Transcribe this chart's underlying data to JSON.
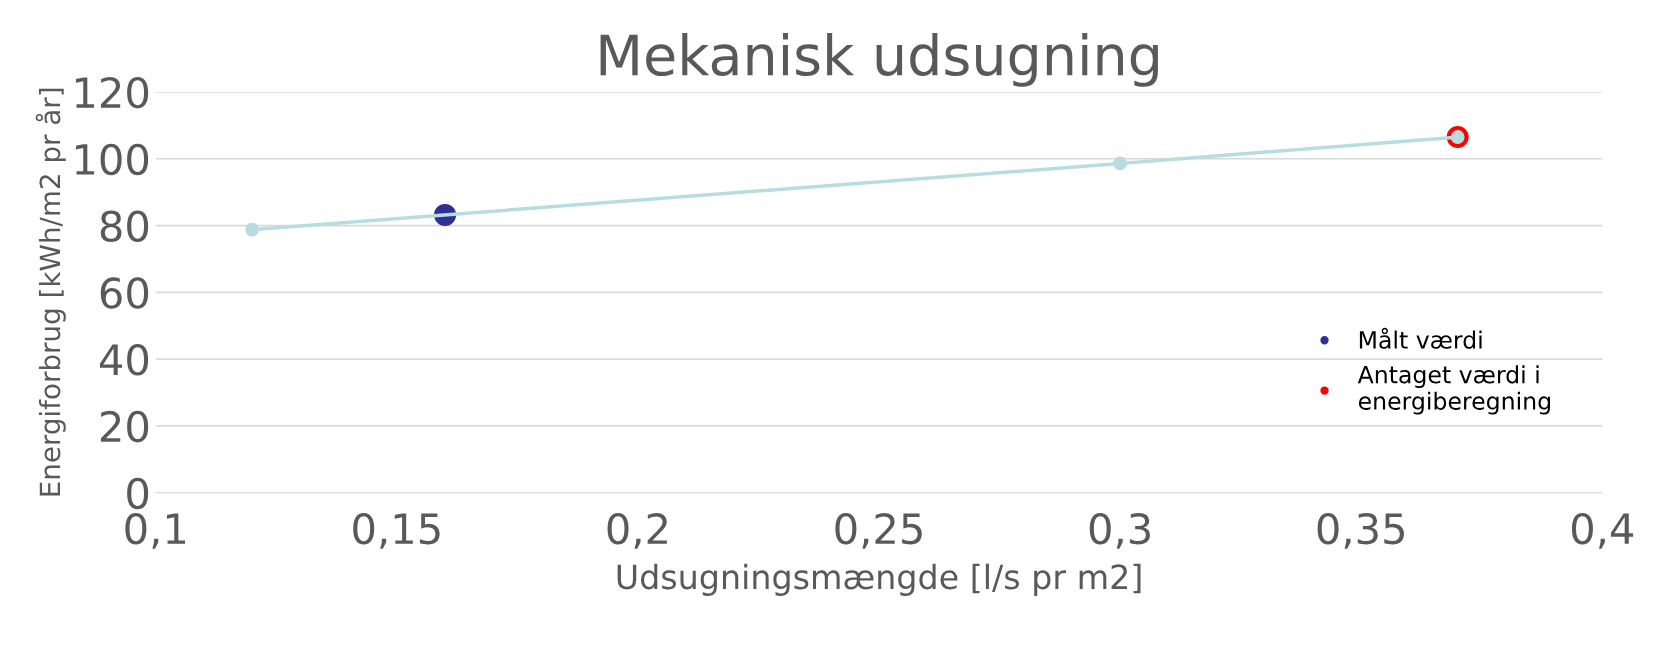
{
  "chart_data": {
    "type": "scatter",
    "title": "Mekanisk udsugning",
    "xlabel": "Udsugningsmængde [l/s pr m2]",
    "ylabel": "Energiforbrug [kWh/m2 pr år]",
    "series": [
      {
        "type": "line",
        "color": "#b7dde1",
        "x": [
          0.12,
          0.3,
          0.37
        ],
        "values": [
          78.8,
          98.6,
          106.5
        ],
        "marker": "circle"
      },
      {
        "name": "Målt værdi",
        "color": "#2e3192",
        "x": [
          0.16
        ],
        "values": [
          83.2
        ]
      },
      {
        "name": "Antaget værdi i\nenergiberegning",
        "color": "#ff0000",
        "x": [
          0.37
        ],
        "values": [
          106.5
        ]
      }
    ],
    "xlim": [
      0.1,
      0.4
    ],
    "xticks": [
      {
        "value": 0.1,
        "label": "0,1"
      },
      {
        "value": 0.15,
        "label": "0,15"
      },
      {
        "value": 0.2,
        "label": "0,2"
      },
      {
        "value": 0.25,
        "label": "0,25"
      },
      {
        "value": 0.3,
        "label": "0,3"
      },
      {
        "value": 0.35,
        "label": "0,35"
      },
      {
        "value": 0.4,
        "label": "0,4"
      }
    ],
    "ylim": [
      0,
      120
    ],
    "yticks": [
      0,
      20,
      40,
      60,
      80,
      100,
      120
    ],
    "grid": "y",
    "legend": "right"
  }
}
